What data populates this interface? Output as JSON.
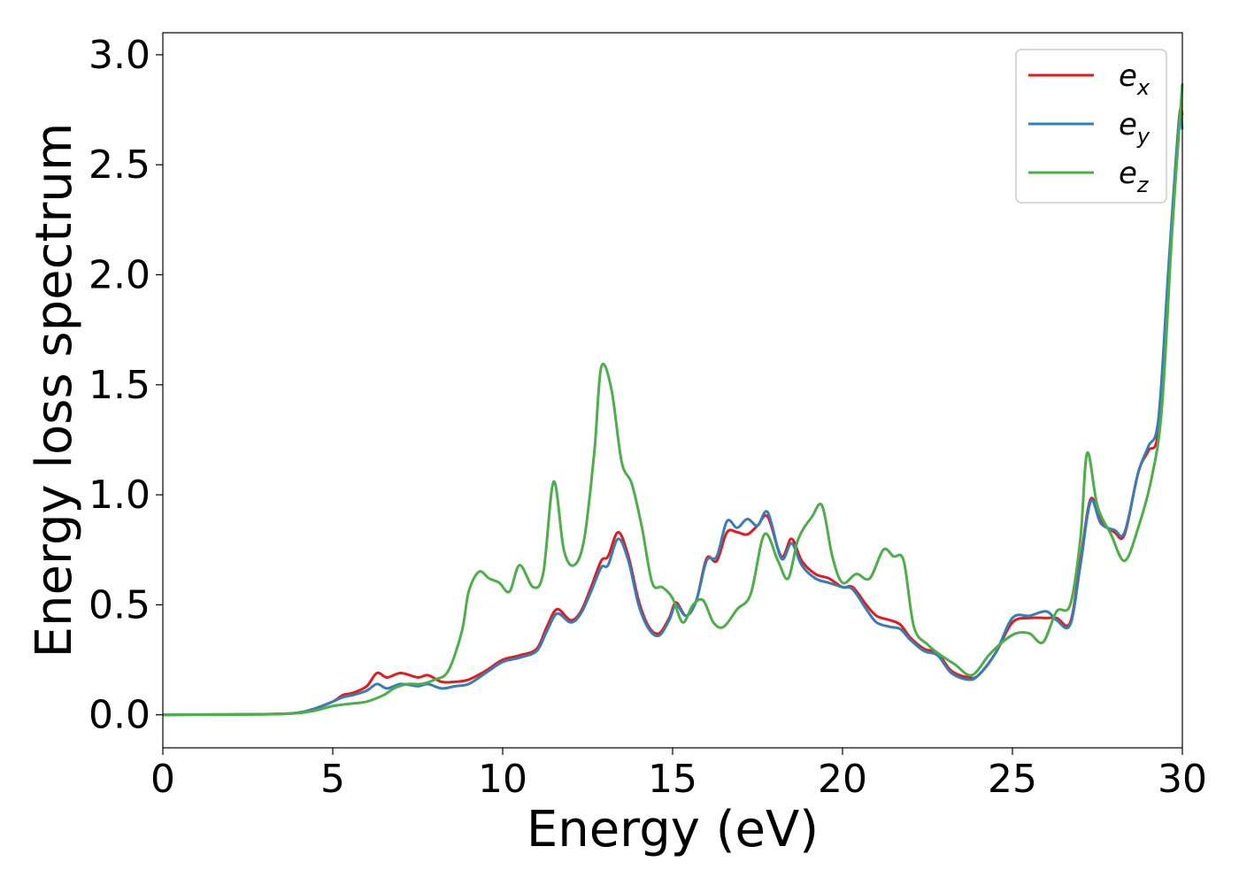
{
  "chart_data": {
    "type": "line",
    "title": "",
    "xlabel": "Energy (eV)",
    "ylabel": "Energy loss spectrum",
    "xlim": [
      0,
      30
    ],
    "ylim": [
      -0.15,
      3.1
    ],
    "xticks": [
      0,
      5,
      10,
      15,
      20,
      25,
      30
    ],
    "xtick_labels": [
      "0",
      "5",
      "10",
      "15",
      "20",
      "25",
      "30"
    ],
    "yticks": [
      0.0,
      0.5,
      1.0,
      1.5,
      2.0,
      2.5,
      3.0
    ],
    "ytick_labels": [
      "0.0",
      "0.5",
      "1.0",
      "1.5",
      "2.0",
      "2.5",
      "3.0"
    ],
    "grid": false,
    "legend_position": "top-right",
    "series": [
      {
        "name": "e_x",
        "label_base": "e",
        "label_sub": "x",
        "color": "#e41a1c",
        "points": [
          [
            0,
            0
          ],
          [
            3,
            0.003
          ],
          [
            4,
            0.01
          ],
          [
            4.5,
            0.03
          ],
          [
            5,
            0.06
          ],
          [
            5.3,
            0.09
          ],
          [
            5.6,
            0.1
          ],
          [
            6,
            0.13
          ],
          [
            6.3,
            0.19
          ],
          [
            6.6,
            0.17
          ],
          [
            7,
            0.19
          ],
          [
            7.5,
            0.17
          ],
          [
            7.8,
            0.18
          ],
          [
            8.2,
            0.15
          ],
          [
            8.6,
            0.15
          ],
          [
            9,
            0.16
          ],
          [
            9.5,
            0.2
          ],
          [
            10,
            0.25
          ],
          [
            10.5,
            0.27
          ],
          [
            11,
            0.3
          ],
          [
            11.3,
            0.4
          ],
          [
            11.6,
            0.48
          ],
          [
            12,
            0.43
          ],
          [
            12.3,
            0.47
          ],
          [
            12.6,
            0.58
          ],
          [
            12.9,
            0.7
          ],
          [
            13.1,
            0.72
          ],
          [
            13.4,
            0.83
          ],
          [
            13.7,
            0.72
          ],
          [
            14,
            0.52
          ],
          [
            14.3,
            0.4
          ],
          [
            14.6,
            0.37
          ],
          [
            14.9,
            0.44
          ],
          [
            15.1,
            0.51
          ],
          [
            15.4,
            0.45
          ],
          [
            15.7,
            0.52
          ],
          [
            16,
            0.71
          ],
          [
            16.3,
            0.7
          ],
          [
            16.6,
            0.83
          ],
          [
            16.9,
            0.83
          ],
          [
            17.2,
            0.82
          ],
          [
            17.5,
            0.86
          ],
          [
            17.8,
            0.9
          ],
          [
            18.2,
            0.72
          ],
          [
            18.5,
            0.8
          ],
          [
            18.8,
            0.7
          ],
          [
            19.2,
            0.64
          ],
          [
            19.6,
            0.62
          ],
          [
            20,
            0.58
          ],
          [
            20.3,
            0.58
          ],
          [
            20.7,
            0.5
          ],
          [
            21,
            0.45
          ],
          [
            21.4,
            0.43
          ],
          [
            21.7,
            0.41
          ],
          [
            22,
            0.35
          ],
          [
            22.4,
            0.3
          ],
          [
            22.8,
            0.28
          ],
          [
            23.2,
            0.2
          ],
          [
            23.7,
            0.17
          ],
          [
            24,
            0.18
          ],
          [
            24.5,
            0.28
          ],
          [
            25,
            0.42
          ],
          [
            25.5,
            0.44
          ],
          [
            26,
            0.44
          ],
          [
            26.3,
            0.44
          ],
          [
            26.7,
            0.42
          ],
          [
            27,
            0.7
          ],
          [
            27.3,
            0.98
          ],
          [
            27.6,
            0.88
          ],
          [
            28,
            0.83
          ],
          [
            28.3,
            0.82
          ],
          [
            28.7,
            1.1
          ],
          [
            29,
            1.2
          ],
          [
            29.3,
            1.3
          ],
          [
            29.6,
            2.0
          ],
          [
            29.9,
            2.7
          ],
          [
            30,
            2.72
          ]
        ]
      },
      {
        "name": "e_y",
        "label_base": "e",
        "label_sub": "y",
        "color": "#377eb8",
        "points": [
          [
            0,
            0
          ],
          [
            3,
            0.003
          ],
          [
            4,
            0.01
          ],
          [
            4.5,
            0.03
          ],
          [
            5,
            0.06
          ],
          [
            5.3,
            0.08
          ],
          [
            5.6,
            0.09
          ],
          [
            6,
            0.11
          ],
          [
            6.3,
            0.14
          ],
          [
            6.6,
            0.12
          ],
          [
            7,
            0.14
          ],
          [
            7.5,
            0.13
          ],
          [
            7.8,
            0.14
          ],
          [
            8.2,
            0.12
          ],
          [
            8.6,
            0.13
          ],
          [
            9,
            0.14
          ],
          [
            9.5,
            0.19
          ],
          [
            10,
            0.24
          ],
          [
            10.5,
            0.26
          ],
          [
            11,
            0.29
          ],
          [
            11.3,
            0.38
          ],
          [
            11.6,
            0.46
          ],
          [
            12,
            0.42
          ],
          [
            12.3,
            0.46
          ],
          [
            12.6,
            0.56
          ],
          [
            12.9,
            0.67
          ],
          [
            13.1,
            0.68
          ],
          [
            13.4,
            0.8
          ],
          [
            13.7,
            0.7
          ],
          [
            14,
            0.5
          ],
          [
            14.3,
            0.39
          ],
          [
            14.6,
            0.36
          ],
          [
            14.9,
            0.43
          ],
          [
            15.1,
            0.5
          ],
          [
            15.4,
            0.45
          ],
          [
            15.7,
            0.52
          ],
          [
            16,
            0.7
          ],
          [
            16.3,
            0.72
          ],
          [
            16.6,
            0.88
          ],
          [
            16.9,
            0.85
          ],
          [
            17.2,
            0.89
          ],
          [
            17.5,
            0.86
          ],
          [
            17.8,
            0.92
          ],
          [
            18.2,
            0.71
          ],
          [
            18.5,
            0.78
          ],
          [
            18.8,
            0.68
          ],
          [
            19.2,
            0.62
          ],
          [
            19.6,
            0.6
          ],
          [
            20,
            0.58
          ],
          [
            20.3,
            0.57
          ],
          [
            20.7,
            0.48
          ],
          [
            21,
            0.42
          ],
          [
            21.4,
            0.4
          ],
          [
            21.7,
            0.39
          ],
          [
            22,
            0.34
          ],
          [
            22.4,
            0.29
          ],
          [
            22.8,
            0.27
          ],
          [
            23.2,
            0.19
          ],
          [
            23.7,
            0.16
          ],
          [
            24,
            0.18
          ],
          [
            24.5,
            0.28
          ],
          [
            25,
            0.44
          ],
          [
            25.5,
            0.45
          ],
          [
            26,
            0.47
          ],
          [
            26.3,
            0.43
          ],
          [
            26.7,
            0.41
          ],
          [
            27,
            0.68
          ],
          [
            27.3,
            0.97
          ],
          [
            27.6,
            0.87
          ],
          [
            28,
            0.84
          ],
          [
            28.3,
            0.83
          ],
          [
            28.7,
            1.1
          ],
          [
            29,
            1.22
          ],
          [
            29.3,
            1.35
          ],
          [
            29.6,
            2.05
          ],
          [
            29.9,
            2.7
          ],
          [
            30,
            2.66
          ]
        ]
      },
      {
        "name": "e_z",
        "label_base": "e",
        "label_sub": "z",
        "color": "#4daf4a",
        "points": [
          [
            0,
            0
          ],
          [
            3,
            0.002
          ],
          [
            4,
            0.008
          ],
          [
            4.5,
            0.02
          ],
          [
            5,
            0.04
          ],
          [
            5.5,
            0.05
          ],
          [
            6,
            0.06
          ],
          [
            6.5,
            0.09
          ],
          [
            6.8,
            0.12
          ],
          [
            7.2,
            0.14
          ],
          [
            7.6,
            0.14
          ],
          [
            8,
            0.16
          ],
          [
            8.4,
            0.2
          ],
          [
            8.8,
            0.38
          ],
          [
            9,
            0.56
          ],
          [
            9.3,
            0.65
          ],
          [
            9.6,
            0.62
          ],
          [
            9.9,
            0.6
          ],
          [
            10.2,
            0.56
          ],
          [
            10.5,
            0.68
          ],
          [
            10.9,
            0.58
          ],
          [
            11.2,
            0.65
          ],
          [
            11.5,
            1.06
          ],
          [
            11.8,
            0.75
          ],
          [
            12.1,
            0.68
          ],
          [
            12.4,
            0.8
          ],
          [
            12.7,
            1.2
          ],
          [
            12.9,
            1.58
          ],
          [
            13.2,
            1.48
          ],
          [
            13.5,
            1.15
          ],
          [
            13.8,
            1.05
          ],
          [
            14.1,
            0.85
          ],
          [
            14.4,
            0.6
          ],
          [
            14.7,
            0.58
          ],
          [
            15,
            0.53
          ],
          [
            15.3,
            0.42
          ],
          [
            15.6,
            0.5
          ],
          [
            15.9,
            0.52
          ],
          [
            16.2,
            0.42
          ],
          [
            16.5,
            0.4
          ],
          [
            16.9,
            0.48
          ],
          [
            17.3,
            0.55
          ],
          [
            17.7,
            0.82
          ],
          [
            18.1,
            0.7
          ],
          [
            18.4,
            0.62
          ],
          [
            18.7,
            0.8
          ],
          [
            19.1,
            0.9
          ],
          [
            19.4,
            0.95
          ],
          [
            19.7,
            0.72
          ],
          [
            20,
            0.6
          ],
          [
            20.4,
            0.64
          ],
          [
            20.8,
            0.62
          ],
          [
            21.2,
            0.75
          ],
          [
            21.5,
            0.72
          ],
          [
            21.8,
            0.7
          ],
          [
            22.1,
            0.4
          ],
          [
            22.5,
            0.32
          ],
          [
            22.9,
            0.27
          ],
          [
            23.3,
            0.23
          ],
          [
            23.8,
            0.18
          ],
          [
            24.3,
            0.27
          ],
          [
            24.7,
            0.33
          ],
          [
            25.1,
            0.37
          ],
          [
            25.5,
            0.37
          ],
          [
            25.9,
            0.33
          ],
          [
            26.3,
            0.47
          ],
          [
            26.7,
            0.5
          ],
          [
            27,
            0.8
          ],
          [
            27.2,
            1.19
          ],
          [
            27.5,
            0.95
          ],
          [
            27.9,
            0.82
          ],
          [
            28.3,
            0.7
          ],
          [
            28.7,
            0.85
          ],
          [
            29.1,
            1.08
          ],
          [
            29.4,
            1.4
          ],
          [
            29.7,
            2.2
          ],
          [
            30,
            2.87
          ]
        ]
      }
    ]
  }
}
